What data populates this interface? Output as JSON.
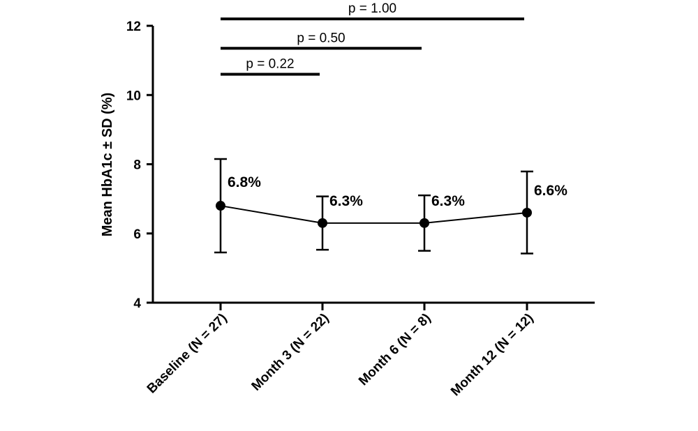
{
  "chart_data": {
    "type": "line",
    "title": "",
    "xlabel": "",
    "ylabel": "Mean HbA1c ± SD (%)",
    "ylim": [
      4,
      12
    ],
    "yticks": [
      4,
      6,
      8,
      10,
      12
    ],
    "grid": false,
    "categories": [
      "Baseline (N = 27)",
      "Month 3 (N = 22)",
      "Month 6 (N = 8)",
      "Month 12 (N = 12)"
    ],
    "series": [
      {
        "values": [
          6.8,
          6.3,
          6.3,
          6.6
        ],
        "sd_upper": [
          8.15,
          7.07,
          7.1,
          7.79
        ],
        "sd_lower": [
          5.45,
          5.53,
          5.5,
          5.42
        ],
        "labels": [
          "6.8%",
          "6.3%",
          "6.3%",
          "6.6%"
        ],
        "color": "#000000"
      }
    ],
    "comparisons": [
      {
        "from": 0,
        "to": 1,
        "label": "p = 0.22",
        "y": 10.6
      },
      {
        "from": 0,
        "to": 2,
        "label": "p = 0.50",
        "y": 11.35
      },
      {
        "from": 0,
        "to": 3,
        "label": "p = 1.00",
        "y": 12.2
      }
    ]
  }
}
